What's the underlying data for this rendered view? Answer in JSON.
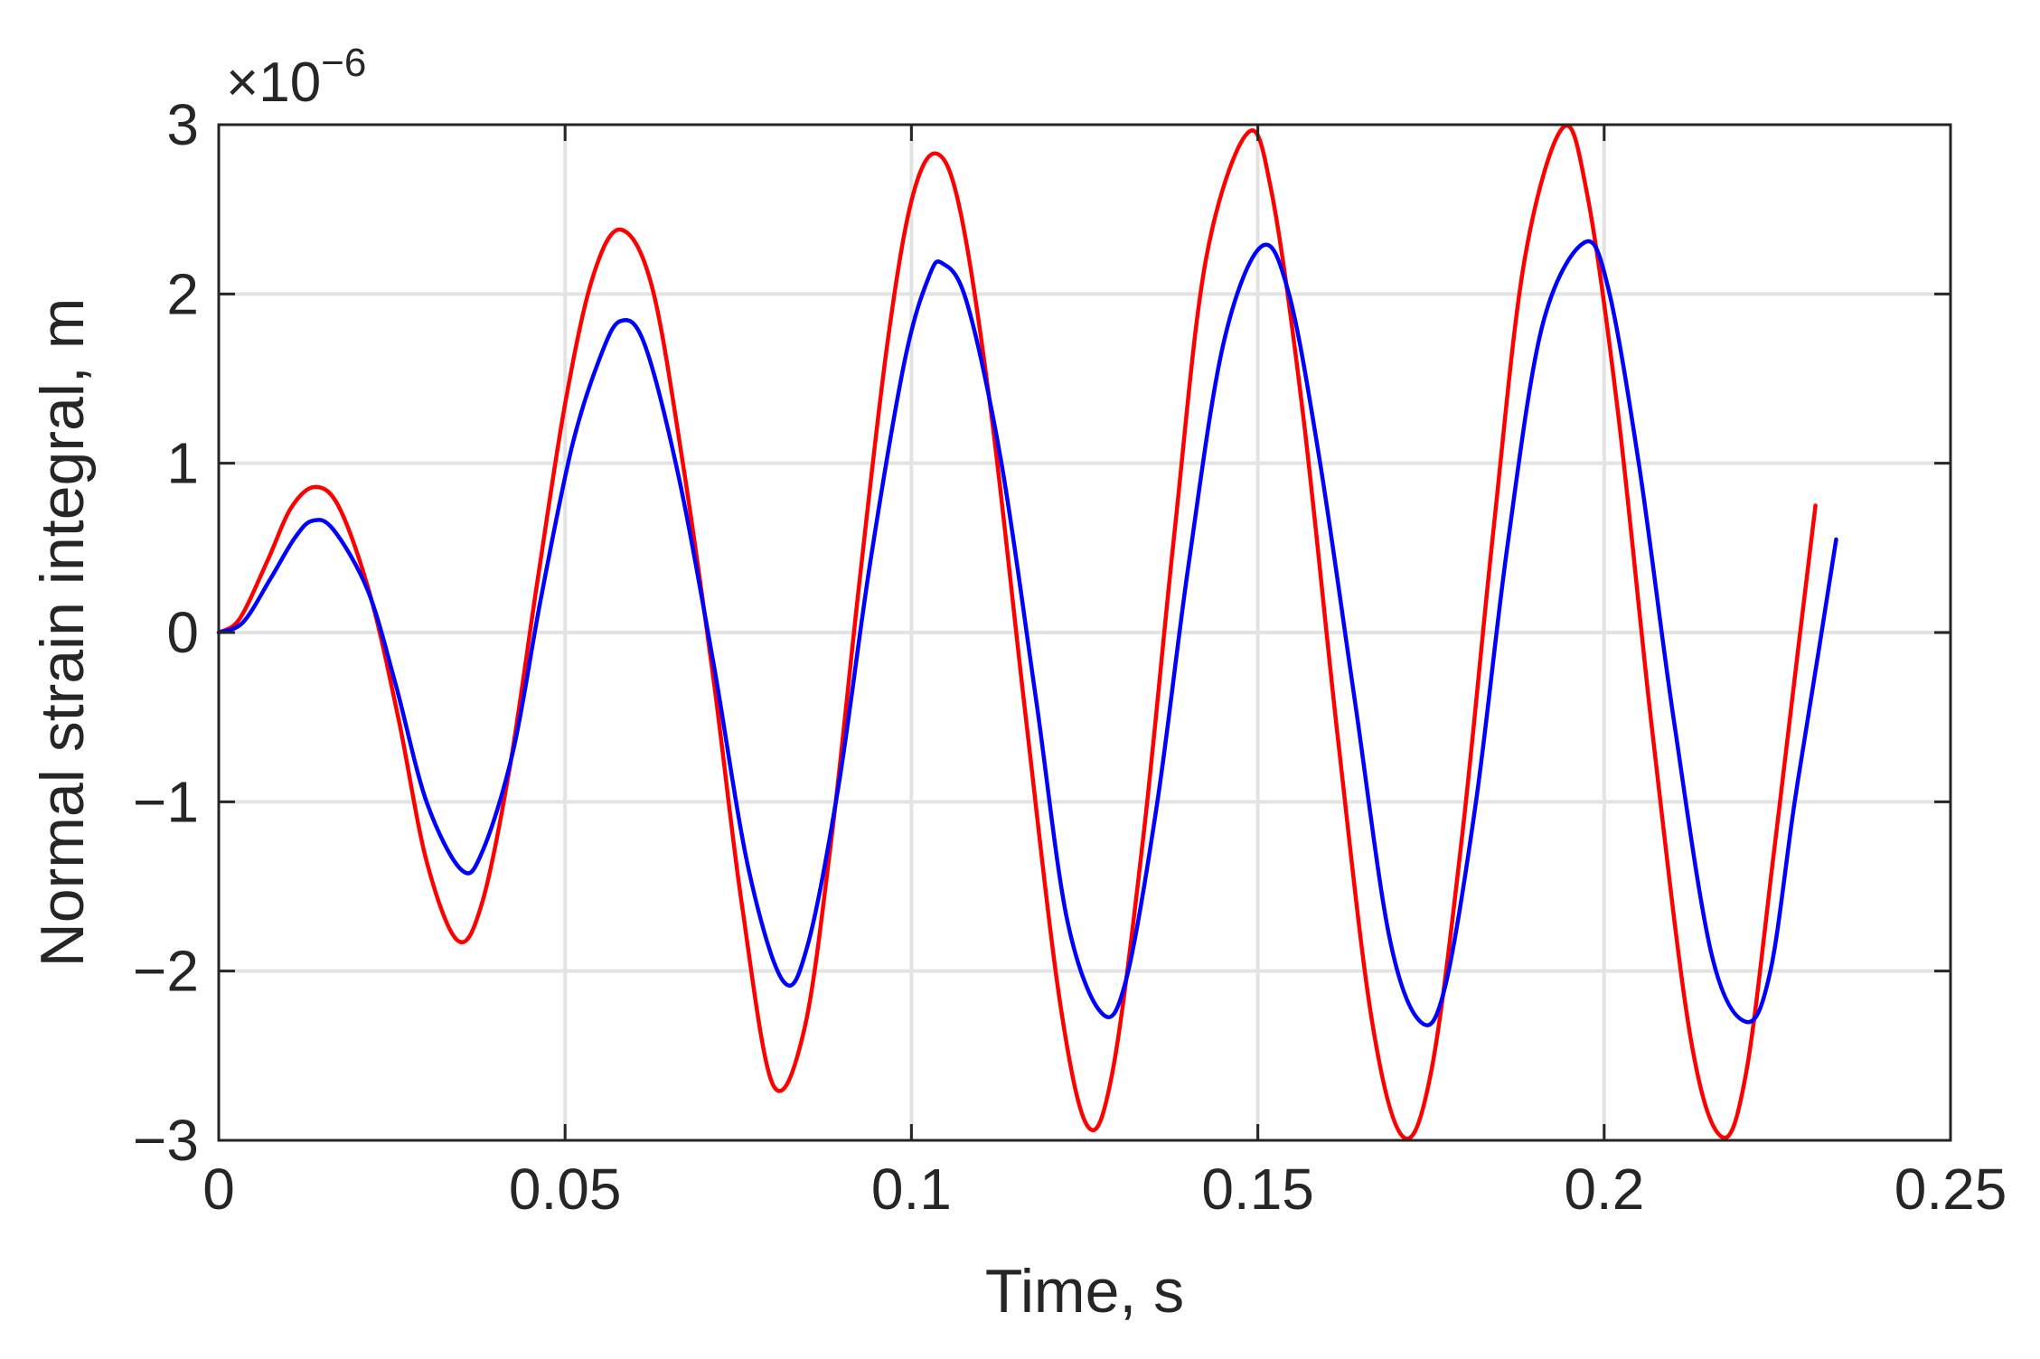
{
  "chart_data": {
    "type": "line",
    "title": "",
    "xlabel": "Time, s",
    "ylabel": "Normal strain integral, m",
    "y_exponent_label": {
      "base": "×10",
      "exponent": "−6"
    },
    "xlim": [
      0,
      0.25
    ],
    "ylim": [
      -3,
      3
    ],
    "y_scale_factor": 1e-06,
    "grid": true,
    "legend": "none",
    "x_ticks": [
      0,
      0.05,
      0.1,
      0.15,
      0.2,
      0.25
    ],
    "x_tick_labels": [
      "0",
      "0.05",
      "0.1",
      "0.15",
      "0.2",
      "0.25"
    ],
    "y_ticks": [
      -3,
      -2,
      -1,
      0,
      1,
      2,
      3
    ],
    "y_tick_labels": [
      "−3",
      "−2",
      "−1",
      "0",
      "1",
      "2",
      "3"
    ],
    "series": [
      {
        "color": "#ff0000",
        "points": [
          [
            0,
            0
          ],
          [
            0.003,
            0.08
          ],
          [
            0.007,
            0.42
          ],
          [
            0.0105,
            0.74
          ],
          [
            0.014,
            0.86
          ],
          [
            0.0175,
            0.73
          ],
          [
            0.022,
            0.2
          ],
          [
            0.026,
            -0.52
          ],
          [
            0.03,
            -1.35
          ],
          [
            0.0345,
            -1.82
          ],
          [
            0.038,
            -1.6
          ],
          [
            0.042,
            -0.8
          ],
          [
            0.046,
            0.3
          ],
          [
            0.05,
            1.35
          ],
          [
            0.054,
            2.1
          ],
          [
            0.058,
            2.38
          ],
          [
            0.0625,
            2.05
          ],
          [
            0.067,
            1.0
          ],
          [
            0.0715,
            -0.3
          ],
          [
            0.0755,
            -1.6
          ],
          [
            0.08,
            -2.67
          ],
          [
            0.0845,
            -2.35
          ],
          [
            0.0885,
            -1.2
          ],
          [
            0.0925,
            0.3
          ],
          [
            0.0965,
            1.7
          ],
          [
            0.1,
            2.55
          ],
          [
            0.1035,
            2.83
          ],
          [
            0.107,
            2.5
          ],
          [
            0.1115,
            1.3
          ],
          [
            0.1165,
            -0.5
          ],
          [
            0.1215,
            -2.2
          ],
          [
            0.1255,
            -2.92
          ],
          [
            0.129,
            -2.6
          ],
          [
            0.1335,
            -1.2
          ],
          [
            0.138,
            0.6
          ],
          [
            0.1425,
            2.2
          ],
          [
            0.1485,
            2.95
          ],
          [
            0.152,
            2.6
          ],
          [
            0.1565,
            1.3
          ],
          [
            0.1615,
            -0.6
          ],
          [
            0.1665,
            -2.3
          ],
          [
            0.171,
            -2.98
          ],
          [
            0.175,
            -2.6
          ],
          [
            0.1795,
            -1.2
          ],
          [
            0.184,
            0.6
          ],
          [
            0.1885,
            2.2
          ],
          [
            0.194,
            2.98
          ],
          [
            0.1975,
            2.6
          ],
          [
            0.202,
            1.3
          ],
          [
            0.207,
            -0.6
          ],
          [
            0.2125,
            -2.4
          ],
          [
            0.217,
            -2.98
          ],
          [
            0.2205,
            -2.6
          ],
          [
            0.2245,
            -1.3
          ],
          [
            0.228,
            -0.1
          ],
          [
            0.2305,
            0.75
          ]
        ]
      },
      {
        "color": "#0000ff",
        "points": [
          [
            0,
            0
          ],
          [
            0.0035,
            0.06
          ],
          [
            0.0075,
            0.32
          ],
          [
            0.011,
            0.56
          ],
          [
            0.0135,
            0.66
          ],
          [
            0.0165,
            0.61
          ],
          [
            0.0215,
            0.25
          ],
          [
            0.0255,
            -0.3
          ],
          [
            0.03,
            -1.0
          ],
          [
            0.035,
            -1.4
          ],
          [
            0.038,
            -1.3
          ],
          [
            0.0425,
            -0.7
          ],
          [
            0.0465,
            0.2
          ],
          [
            0.051,
            1.1
          ],
          [
            0.055,
            1.62
          ],
          [
            0.058,
            1.84
          ],
          [
            0.0615,
            1.7
          ],
          [
            0.0665,
            0.9
          ],
          [
            0.0715,
            -0.2
          ],
          [
            0.0765,
            -1.4
          ],
          [
            0.0815,
            -2.06
          ],
          [
            0.085,
            -1.85
          ],
          [
            0.0895,
            -0.9
          ],
          [
            0.094,
            0.4
          ],
          [
            0.099,
            1.6
          ],
          [
            0.1025,
            2.1
          ],
          [
            0.1045,
            2.18
          ],
          [
            0.108,
            1.95
          ],
          [
            0.113,
            1.0
          ],
          [
            0.118,
            -0.4
          ],
          [
            0.1225,
            -1.7
          ],
          [
            0.1275,
            -2.25
          ],
          [
            0.131,
            -2.05
          ],
          [
            0.1355,
            -1.0
          ],
          [
            0.14,
            0.4
          ],
          [
            0.145,
            1.7
          ],
          [
            0.1505,
            2.28
          ],
          [
            0.1545,
            2.0
          ],
          [
            0.159,
            1.0
          ],
          [
            0.164,
            -0.4
          ],
          [
            0.169,
            -1.8
          ],
          [
            0.1735,
            -2.3
          ],
          [
            0.177,
            -2.1
          ],
          [
            0.1815,
            -1.0
          ],
          [
            0.186,
            0.5
          ],
          [
            0.191,
            1.8
          ],
          [
            0.197,
            2.3
          ],
          [
            0.2005,
            2.05
          ],
          [
            0.205,
            1.0
          ],
          [
            0.21,
            -0.5
          ],
          [
            0.2155,
            -1.9
          ],
          [
            0.2205,
            -2.3
          ],
          [
            0.224,
            -2.0
          ],
          [
            0.2275,
            -1.0
          ],
          [
            0.231,
            -0.1
          ],
          [
            0.2335,
            0.55
          ]
        ]
      }
    ]
  }
}
